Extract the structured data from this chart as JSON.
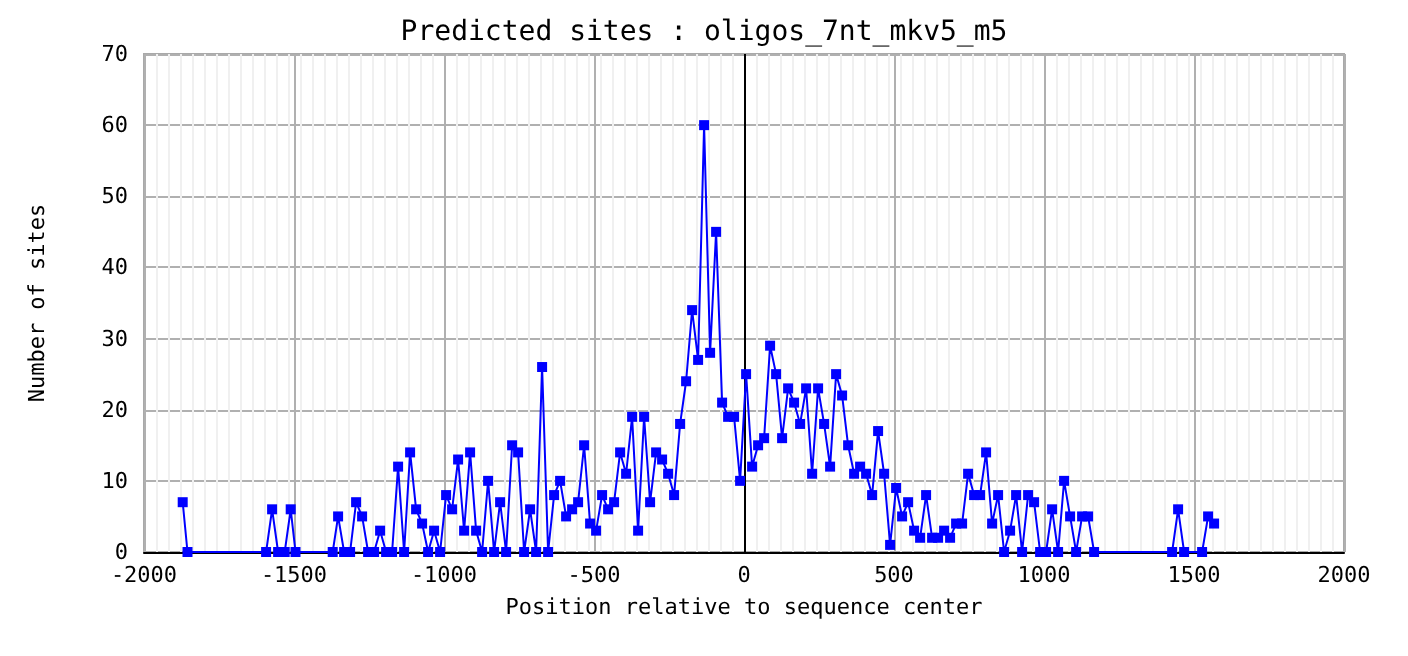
{
  "chart_data": {
    "type": "line",
    "title": "Predicted sites : oligos_7nt_mkv5_m5",
    "xlabel": "Position relative to sequence center",
    "ylabel": "Number of sites",
    "series": [
      {
        "color": "#0000ff",
        "x": [
          -1871,
          -1855,
          -1593,
          -1573,
          -1553,
          -1531,
          -1511,
          -1495,
          -1371,
          -1353,
          -1333,
          -1313,
          -1293,
          -1273,
          -1253,
          -1233,
          -1213,
          -1193,
          -1173,
          -1153,
          -1133,
          -1113,
          -1093,
          -1073,
          -1053,
          -1033,
          -1013,
          -993,
          -973,
          -953,
          -933,
          -913,
          -893,
          -873,
          -853,
          -833,
          -813,
          -793,
          -773,
          -753,
          -733,
          -713,
          -693,
          -673,
          -653,
          -633,
          -613,
          -593,
          -573,
          -553,
          -533,
          -513,
          -493,
          -473,
          -453,
          -433,
          -413,
          -393,
          -373,
          -353,
          -333,
          -313,
          -293,
          -273,
          -253,
          -233,
          -213,
          -193,
          -173,
          -153,
          -133,
          -113,
          -93,
          -73,
          -53,
          -33,
          -13,
          7,
          27,
          47,
          67,
          87,
          107,
          127,
          147,
          167,
          187,
          207,
          227,
          247,
          267,
          287,
          307,
          327,
          347,
          367,
          387,
          407,
          427,
          447,
          467,
          487,
          507,
          527,
          547,
          567,
          587,
          607,
          627,
          647,
          667,
          687,
          707,
          727,
          747,
          767,
          787,
          807,
          827,
          847,
          867,
          887,
          907,
          927,
          947,
          967,
          987,
          1007,
          1027,
          1047,
          1067,
          1087,
          1107,
          1127,
          1147,
          1167,
          1427,
          1447,
          1467,
          1527,
          1547,
          1567
        ],
        "values": [
          7,
          0,
          0,
          6,
          0,
          0,
          6,
          0,
          0,
          5,
          0,
          0,
          7,
          5,
          0,
          0,
          3,
          0,
          0,
          12,
          0,
          14,
          6,
          4,
          0,
          3,
          0,
          8,
          6,
          13,
          3,
          14,
          3,
          0,
          10,
          0,
          7,
          0,
          15,
          14,
          0,
          6,
          0,
          26,
          0,
          8,
          10,
          5,
          6,
          7,
          15,
          4,
          3,
          8,
          6,
          7,
          14,
          11,
          19,
          3,
          19,
          7,
          14,
          13,
          11,
          8,
          18,
          24,
          34,
          27,
          60,
          28,
          45,
          21,
          19,
          19,
          10,
          25,
          12,
          15,
          16,
          29,
          25,
          16,
          23,
          21,
          18,
          23,
          11,
          23,
          18,
          12,
          25,
          22,
          15,
          11,
          12,
          11,
          8,
          17,
          11,
          1,
          9,
          5,
          7,
          3,
          2,
          8,
          2,
          2,
          3,
          2,
          4,
          4,
          11,
          8,
          8,
          14,
          4,
          8,
          0,
          3,
          8,
          0,
          8,
          7,
          0,
          0,
          6,
          0,
          10,
          5,
          0,
          5,
          5,
          0,
          0,
          6,
          0,
          0,
          5,
          4
        ]
      }
    ],
    "xlim": [
      -2000,
      2000
    ],
    "xticks": [
      -2000,
      -1500,
      -1000,
      -500,
      0,
      500,
      1000,
      1500,
      2000
    ],
    "ylim": [
      0,
      70
    ],
    "yticks": [
      0,
      10,
      20,
      30,
      40,
      50,
      60,
      70
    ],
    "grid": true,
    "marker": "square",
    "line_style": "solid",
    "ref_lines": [
      {
        "axis": "x",
        "value": 0,
        "color": "#000000"
      }
    ]
  }
}
